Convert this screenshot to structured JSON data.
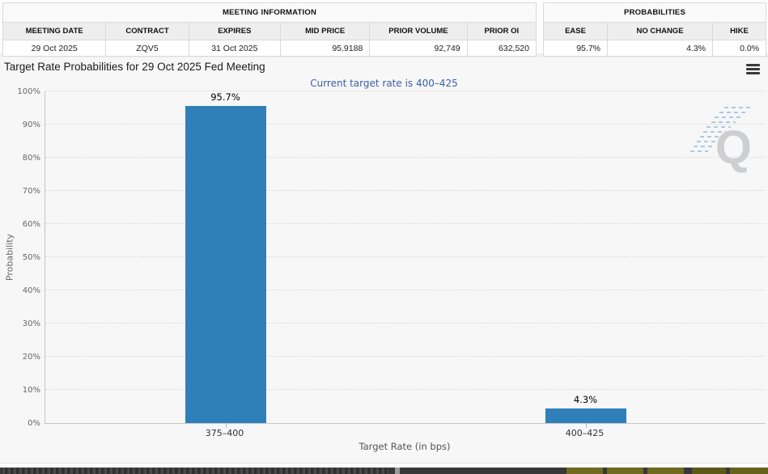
{
  "tables": {
    "meeting_information": {
      "title": "MEETING INFORMATION",
      "columns": [
        "MEETING DATE",
        "CONTRACT",
        "EXPIRES",
        "MID PRICE",
        "PRIOR VOLUME",
        "PRIOR OI"
      ],
      "row": [
        "29 Oct 2025",
        "ZQV5",
        "31 Oct 2025",
        "95.9188",
        "92,749",
        "632,520"
      ]
    },
    "probabilities": {
      "title": "PROBABILITIES",
      "columns": [
        "EASE",
        "NO CHANGE",
        "HIKE"
      ],
      "row": [
        "95.7%",
        "4.3%",
        "0.0%"
      ]
    }
  },
  "chart_data": {
    "type": "bar",
    "title": "Target Rate Probabilities for 29 Oct 2025 Fed Meeting",
    "subtitle": "Current target rate is 400–425",
    "categories": [
      "375–400",
      "400–425"
    ],
    "values": [
      95.7,
      4.3
    ],
    "data_labels": [
      "95.7%",
      "4.3%"
    ],
    "xlabel": "Target Rate (in bps)",
    "ylabel": "Probability",
    "ylim": [
      0,
      100
    ],
    "ytick_step": 10,
    "ytick_suffix": "%",
    "grid": "dotted-horizontal",
    "legend": "none",
    "bar_color": "#2f7fb9"
  },
  "icons": {
    "menu": "hamburger-menu",
    "watermark_letter": "Q"
  },
  "colors": {
    "bar": "#2f7fb9",
    "subtitle_text": "#3a5fa8",
    "chart_background": "#f7f7f7",
    "table_header_background": "#eeeeee",
    "footer_bar": "#383838",
    "footer_accent": "#6f6a1f"
  }
}
